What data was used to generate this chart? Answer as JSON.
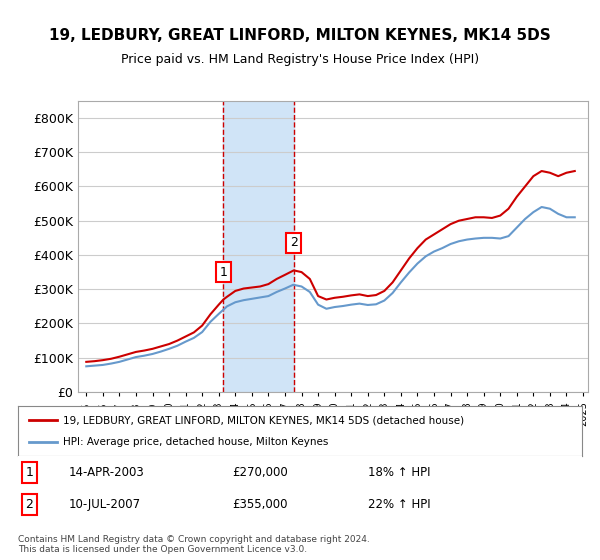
{
  "title": "19, LEDBURY, GREAT LINFORD, MILTON KEYNES, MK14 5DS",
  "subtitle": "Price paid vs. HM Land Registry's House Price Index (HPI)",
  "x_start_year": 1995,
  "x_end_year": 2025,
  "ylim": [
    0,
    850000
  ],
  "yticks": [
    0,
    100000,
    200000,
    300000,
    400000,
    500000,
    600000,
    700000,
    800000
  ],
  "ytick_labels": [
    "£0",
    "£100K",
    "£200K",
    "£300K",
    "£400K",
    "£500K",
    "£600K",
    "£700K",
    "£800K"
  ],
  "transaction1": {
    "date_label": "14-APR-2003",
    "price": 270000,
    "hpi_pct": "18%",
    "marker_year": 2003.28,
    "box_label": "1"
  },
  "transaction2": {
    "date_label": "10-JUL-2007",
    "price": 355000,
    "hpi_pct": "22%",
    "marker_year": 2007.53,
    "box_label": "2"
  },
  "shaded_region": [
    2003.28,
    2007.53
  ],
  "property_line_color": "#cc0000",
  "hpi_line_color": "#6699cc",
  "shaded_color": "#d0e4f7",
  "grid_color": "#cccccc",
  "background_color": "#ffffff",
  "legend_label_property": "19, LEDBURY, GREAT LINFORD, MILTON KEYNES, MK14 5DS (detached house)",
  "legend_label_hpi": "HPI: Average price, detached house, Milton Keynes",
  "footnote": "Contains HM Land Registry data © Crown copyright and database right 2024.\nThis data is licensed under the Open Government Licence v3.0.",
  "property_x": [
    1995.0,
    1995.5,
    1996.0,
    1996.5,
    1997.0,
    1997.5,
    1998.0,
    1998.5,
    1999.0,
    1999.5,
    2000.0,
    2000.5,
    2001.0,
    2001.5,
    2002.0,
    2002.5,
    2003.0,
    2003.28,
    2003.5,
    2004.0,
    2004.5,
    2005.0,
    2005.5,
    2006.0,
    2006.5,
    2007.0,
    2007.53,
    2008.0,
    2008.5,
    2009.0,
    2009.5,
    2010.0,
    2010.5,
    2011.0,
    2011.5,
    2012.0,
    2012.5,
    2013.0,
    2013.5,
    2014.0,
    2014.5,
    2015.0,
    2015.5,
    2016.0,
    2016.5,
    2017.0,
    2017.5,
    2018.0,
    2018.5,
    2019.0,
    2019.5,
    2020.0,
    2020.5,
    2021.0,
    2021.5,
    2022.0,
    2022.5,
    2023.0,
    2023.5,
    2024.0,
    2024.5
  ],
  "property_y": [
    88000,
    90000,
    93000,
    97000,
    103000,
    110000,
    117000,
    121000,
    126000,
    133000,
    140000,
    150000,
    162000,
    174000,
    194000,
    227000,
    255000,
    270000,
    278000,
    295000,
    302000,
    305000,
    308000,
    315000,
    330000,
    342000,
    355000,
    350000,
    330000,
    280000,
    270000,
    275000,
    278000,
    282000,
    285000,
    280000,
    283000,
    295000,
    320000,
    355000,
    390000,
    420000,
    445000,
    460000,
    475000,
    490000,
    500000,
    505000,
    510000,
    510000,
    508000,
    515000,
    535000,
    570000,
    600000,
    630000,
    645000,
    640000,
    630000,
    640000,
    645000
  ],
  "hpi_x": [
    1995.0,
    1995.5,
    1996.0,
    1996.5,
    1997.0,
    1997.5,
    1998.0,
    1998.5,
    1999.0,
    1999.5,
    2000.0,
    2000.5,
    2001.0,
    2001.5,
    2002.0,
    2002.5,
    2003.0,
    2003.5,
    2004.0,
    2004.5,
    2005.0,
    2005.5,
    2006.0,
    2006.5,
    2007.0,
    2007.5,
    2008.0,
    2008.5,
    2009.0,
    2009.5,
    2010.0,
    2010.5,
    2011.0,
    2011.5,
    2012.0,
    2012.5,
    2013.0,
    2013.5,
    2014.0,
    2014.5,
    2015.0,
    2015.5,
    2016.0,
    2016.5,
    2017.0,
    2017.5,
    2018.0,
    2018.5,
    2019.0,
    2019.5,
    2020.0,
    2020.5,
    2021.0,
    2021.5,
    2022.0,
    2022.5,
    2023.0,
    2023.5,
    2024.0,
    2024.5
  ],
  "hpi_y": [
    75000,
    77000,
    79000,
    83000,
    88000,
    95000,
    102000,
    106000,
    111000,
    118000,
    126000,
    135000,
    147000,
    158000,
    175000,
    205000,
    228000,
    250000,
    262000,
    268000,
    272000,
    276000,
    280000,
    292000,
    302000,
    313000,
    308000,
    292000,
    255000,
    243000,
    248000,
    251000,
    255000,
    258000,
    254000,
    256000,
    267000,
    289000,
    320000,
    349000,
    375000,
    396000,
    410000,
    420000,
    432000,
    440000,
    445000,
    448000,
    450000,
    450000,
    448000,
    455000,
    480000,
    505000,
    525000,
    540000,
    535000,
    520000,
    510000,
    510000
  ]
}
